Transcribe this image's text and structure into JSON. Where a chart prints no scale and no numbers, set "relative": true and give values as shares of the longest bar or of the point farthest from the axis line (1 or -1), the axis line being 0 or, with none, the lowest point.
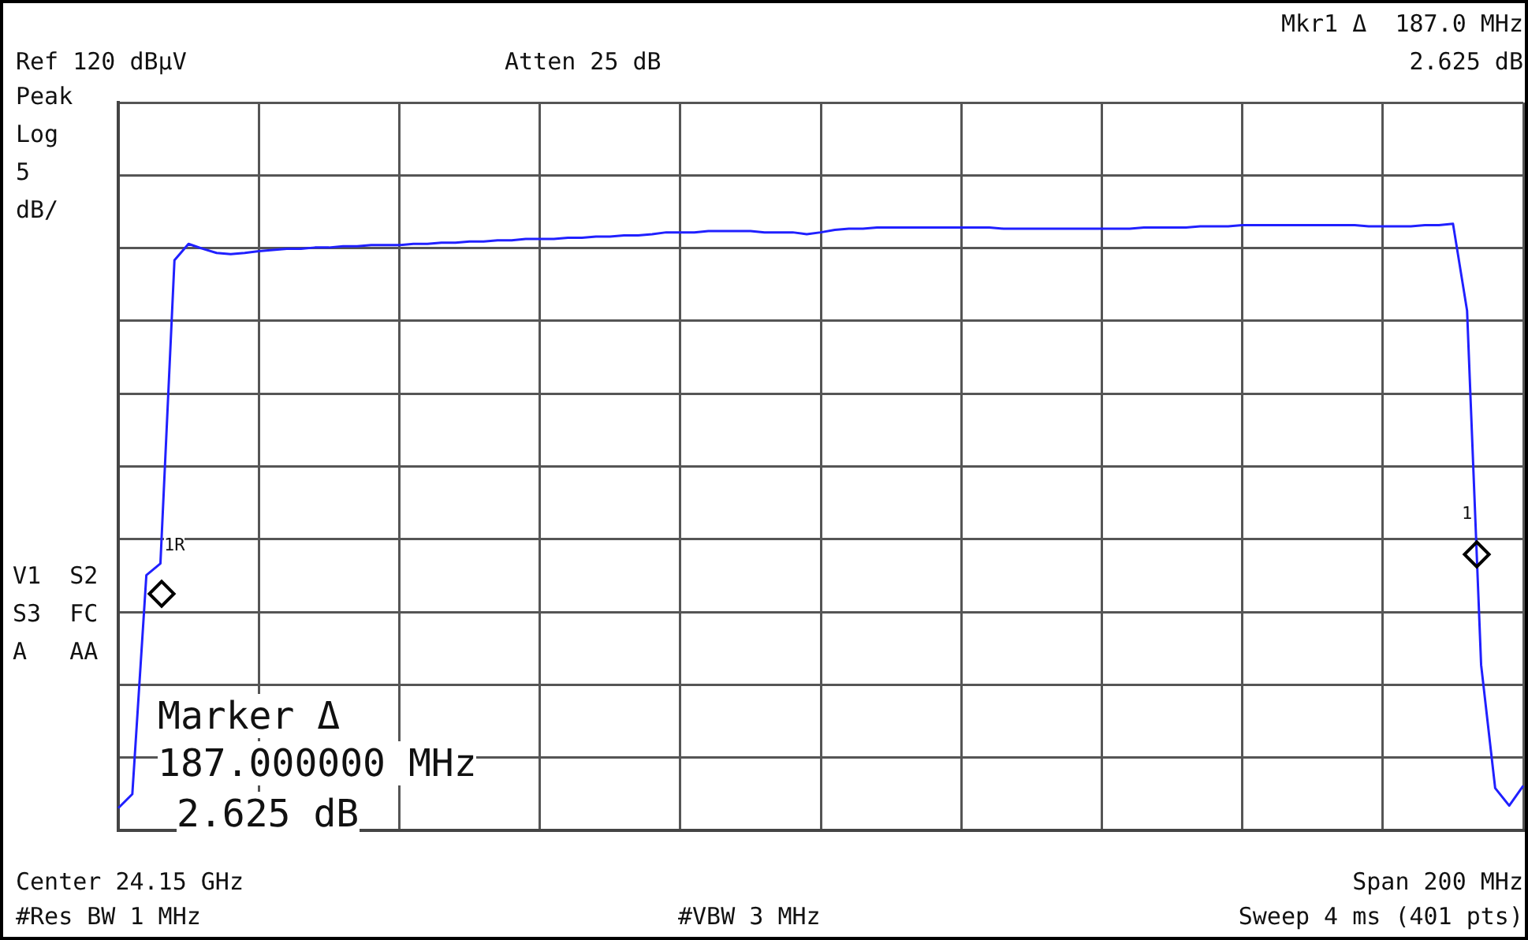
{
  "chart_data": {
    "type": "line",
    "relative": true,
    "grid": true,
    "legend": false,
    "categories": [
      null,
      null,
      null,
      null,
      null,
      null,
      null,
      null,
      null,
      null,
      null,
      null,
      null,
      null,
      null,
      null,
      null,
      null,
      null,
      null,
      null,
      null,
      null,
      null,
      null,
      null,
      null,
      null,
      null,
      null,
      null,
      null,
      null,
      null,
      null,
      null,
      null,
      null,
      null,
      null,
      null,
      null,
      null,
      null,
      null,
      null,
      null,
      null,
      null,
      null,
      null,
      null,
      null,
      null,
      null,
      null,
      null,
      null,
      null,
      null,
      null,
      null,
      null,
      null,
      null,
      null,
      null,
      null,
      null,
      null,
      null,
      null,
      null,
      null,
      null,
      null,
      null,
      null,
      null,
      null,
      null,
      null,
      null,
      null,
      null,
      null,
      null,
      null,
      null,
      null,
      null,
      null,
      null,
      null,
      null,
      null,
      null,
      null,
      null,
      null,
      null
    ],
    "series": [
      {
        "color": "#2020ff",
        "marker": "none",
        "line_style": "solid",
        "values": [
          0.037,
          0.06,
          0.421,
          0.44,
          0.94,
          0.967,
          0.959,
          0.952,
          0.95,
          0.952,
          0.955,
          0.957,
          0.959,
          0.959,
          0.961,
          0.961,
          0.963,
          0.963,
          0.965,
          0.965,
          0.965,
          0.967,
          0.967,
          0.969,
          0.969,
          0.971,
          0.971,
          0.973,
          0.973,
          0.975,
          0.975,
          0.975,
          0.977,
          0.977,
          0.979,
          0.979,
          0.981,
          0.981,
          0.983,
          0.986,
          0.986,
          0.986,
          0.988,
          0.988,
          0.988,
          0.988,
          0.986,
          0.986,
          0.986,
          0.983,
          0.986,
          0.99,
          0.992,
          0.992,
          0.994,
          0.994,
          0.994,
          0.994,
          0.994,
          0.994,
          0.994,
          0.994,
          0.994,
          0.992,
          0.992,
          0.992,
          0.992,
          0.992,
          0.992,
          0.992,
          0.992,
          0.992,
          0.992,
          0.994,
          0.994,
          0.994,
          0.994,
          0.996,
          0.996,
          0.996,
          0.998,
          0.998,
          0.998,
          0.998,
          0.998,
          0.998,
          0.998,
          0.998,
          0.998,
          0.996,
          0.996,
          0.996,
          0.996,
          0.998,
          0.998,
          1.0,
          0.857,
          0.273,
          0.07,
          0.041,
          0.074
        ]
      }
    ],
    "annotations": [
      "Ref 120 dBµV",
      "Atten 25 dB",
      "Mkr1 Δ  187.0 MHz",
      "2.625 dB",
      "Peak",
      "Log",
      "5",
      "dB/",
      "V1  S2",
      "S3  FC",
      "A   AA",
      "Marker Δ",
      "187.000000 MHz",
      "2.625 dB",
      "Center 24.15 GHz",
      "Span 200 MHz",
      "#Res BW 1 MHz",
      "#VBW 3 MHz",
      "Sweep 4 ms (401 pts)",
      "1R",
      "1"
    ]
  }
}
